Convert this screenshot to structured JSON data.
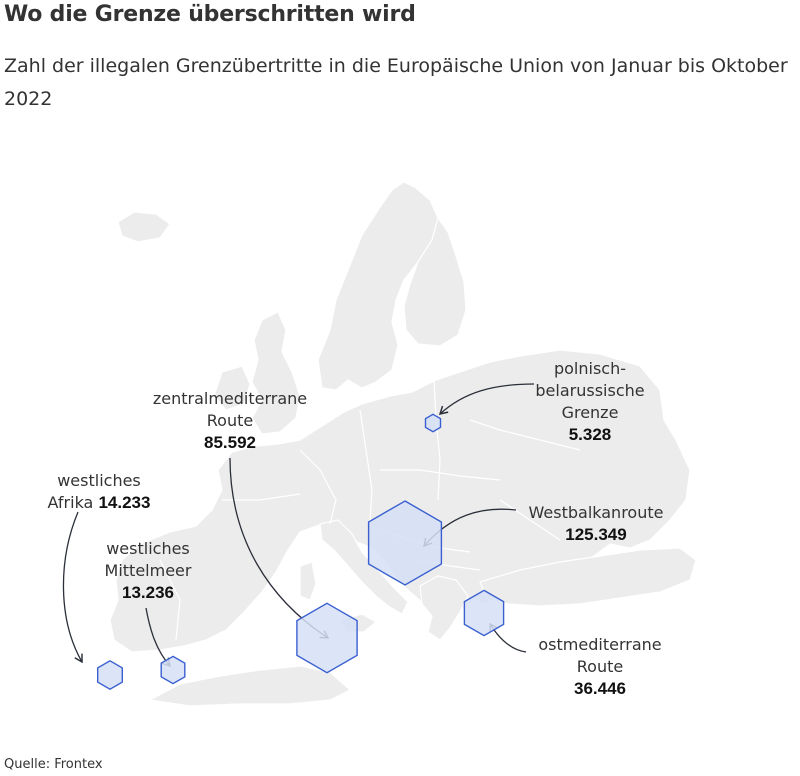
{
  "title": "Wo die Grenze überschritten wird",
  "subtitle": "Zahl der illegalen Grenzübertritte in die Europäische Union von Januar bis Oktober 2022",
  "source": "Quelle: Frontex",
  "colors": {
    "land": "#ececec",
    "border": "#ffffff",
    "hex_fill": "#d6e1f7",
    "hex_stroke": "#3a5fd0",
    "arrow": "#2b2f3a"
  },
  "routes": [
    {
      "id": "westliches-afrika",
      "label_lines": [
        "westliches",
        "Afrika"
      ],
      "value_label": "14.233",
      "value": 14233
    },
    {
      "id": "westliches-mittelmeer",
      "label_lines": [
        "westliches",
        "Mittelmeer"
      ],
      "value_label": "13.236",
      "value": 13236
    },
    {
      "id": "zentralmediterrane-route",
      "label_lines": [
        "zentralmediterrane",
        "Route"
      ],
      "value_label": "85.592",
      "value": 85592
    },
    {
      "id": "westbalkanroute",
      "label_lines": [
        "Westbalkanroute"
      ],
      "value_label": "125.349",
      "value": 125349
    },
    {
      "id": "ostmediterrane-route",
      "label_lines": [
        "ostmediterrane",
        "Route"
      ],
      "value_label": "36.446",
      "value": 36446
    },
    {
      "id": "polnisch-belarussische-grenze",
      "label_lines": [
        "polnisch-",
        "belarussische",
        "Grenze"
      ],
      "value_label": "5.328",
      "value": 5328
    }
  ]
}
